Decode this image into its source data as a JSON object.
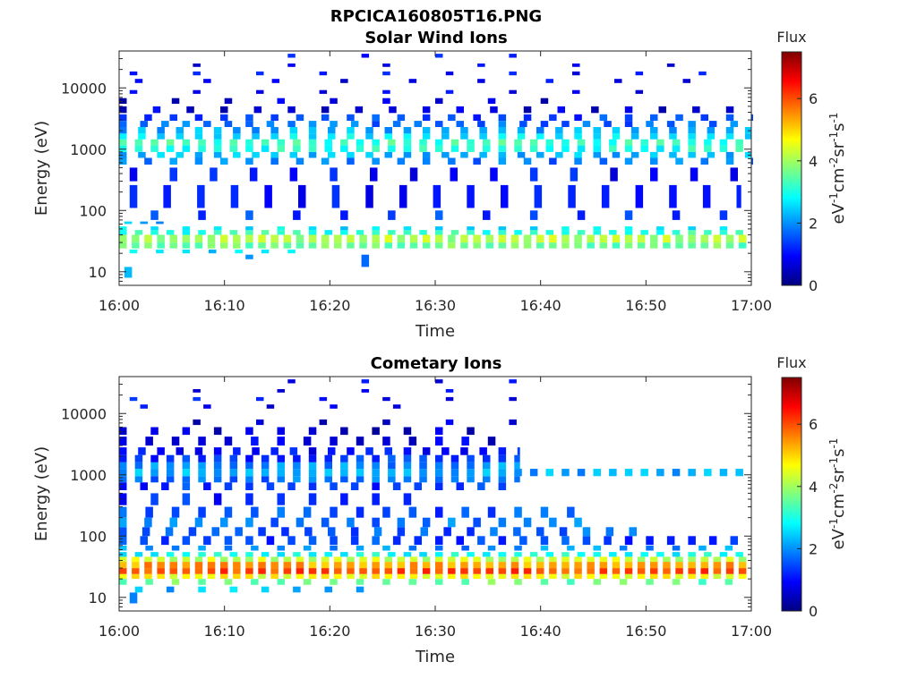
{
  "figure_title": "RPCICA160805T16.PNG",
  "colormap": [
    "#00007f",
    "#0000ff",
    "#007fff",
    "#00ffff",
    "#7fff7f",
    "#ffff00",
    "#ff7f00",
    "#ff0000",
    "#7f0000"
  ],
  "chart_data": [
    {
      "type": "heatmap",
      "title": "Solar Wind Ions",
      "xlabel": "Time",
      "ylabel": "Energy (eV)",
      "xlim": [
        "16:00",
        "17:00"
      ],
      "xticks": [
        "16:00",
        "16:10",
        "16:20",
        "16:30",
        "16:40",
        "16:50",
        "17:00"
      ],
      "yscale": "log",
      "ylim": [
        6,
        40000
      ],
      "yticks": [
        10,
        100,
        1000,
        10000
      ],
      "yticklabels": [
        "10",
        "100",
        "1000",
        "10000"
      ],
      "colorbar": {
        "title": "Flux",
        "label": "eV⁻¹cm⁻²sr⁻¹s⁻¹",
        "range": [
          0,
          7.5
        ],
        "ticks": [
          0,
          2,
          4,
          6
        ]
      },
      "bands": [
        {
          "e_lo": 8,
          "e_hi": 12,
          "x_from": 0.5,
          "x_to": 1.8,
          "x_step": 60,
          "level": 2.2
        },
        {
          "e_lo": 16,
          "e_hi": 19,
          "x_from": 12,
          "x_to": 13.5,
          "x_step": 60,
          "level": 2.2
        },
        {
          "e_lo": 12,
          "e_hi": 19,
          "x_from": 23,
          "x_to": 24.5,
          "x_step": 60,
          "level": 1.6
        },
        {
          "e_lo": 20,
          "e_hi": 23,
          "x_from": 1,
          "x_to": 17,
          "x_step": 2.5,
          "level": 2.5
        },
        {
          "e_lo": 24,
          "e_hi": 30,
          "x_from": 0,
          "x_to": 60,
          "x_step": 1.2,
          "level": 3.6
        },
        {
          "e_lo": 30,
          "e_hi": 40,
          "x_from": 0,
          "x_to": 60,
          "x_step": 1.2,
          "level": 4.1
        },
        {
          "e_lo": 40,
          "e_hi": 48,
          "x_from": 0,
          "x_to": 60,
          "x_step": 1.5,
          "level": 3.1
        },
        {
          "e_lo": 48,
          "e_hi": 55,
          "x_from": 0,
          "x_to": 60,
          "x_step": 3.0,
          "level": 2.7
        },
        {
          "e_lo": 60,
          "e_hi": 66,
          "x_from": 0.5,
          "x_to": 5,
          "x_step": 1.5,
          "level": 2.2
        },
        {
          "e_lo": 70,
          "e_hi": 100,
          "x_from": 3,
          "x_to": 58,
          "x_step": 4.5,
          "level": 1.3
        },
        {
          "e_lo": 110,
          "e_hi": 260,
          "x_from": 1,
          "x_to": 59,
          "x_step": 3.2,
          "level": 1.1
        },
        {
          "e_lo": 300,
          "e_hi": 500,
          "x_from": 1,
          "x_to": 59,
          "x_step": 3.8,
          "level": 1.0
        },
        {
          "e_lo": 560,
          "e_hi": 720,
          "x_from": 0,
          "x_to": 60,
          "x_step": 2.4,
          "level": 1.8
        },
        {
          "e_lo": 720,
          "e_hi": 900,
          "x_from": 0,
          "x_to": 60,
          "x_step": 1.8,
          "level": 2.3
        },
        {
          "e_lo": 900,
          "e_hi": 1150,
          "x_from": 0,
          "x_to": 60,
          "x_step": 1.5,
          "level": 3.0
        },
        {
          "e_lo": 1150,
          "e_hi": 1450,
          "x_from": 0,
          "x_to": 60,
          "x_step": 1.5,
          "level": 3.2
        },
        {
          "e_lo": 1450,
          "e_hi": 1800,
          "x_from": 0,
          "x_to": 60,
          "x_step": 1.8,
          "level": 2.7
        },
        {
          "e_lo": 1800,
          "e_hi": 2300,
          "x_from": 0,
          "x_to": 60,
          "x_step": 1.8,
          "level": 2.2
        },
        {
          "e_lo": 2300,
          "e_hi": 2900,
          "x_from": 0,
          "x_to": 60,
          "x_step": 2.0,
          "level": 1.7
        },
        {
          "e_lo": 2900,
          "e_hi": 3700,
          "x_from": 0,
          "x_to": 60,
          "x_step": 2.4,
          "level": 1.4
        },
        {
          "e_lo": 3900,
          "e_hi": 5000,
          "x_from": 0,
          "x_to": 60,
          "x_step": 3.2,
          "level": 0.7
        },
        {
          "e_lo": 5500,
          "e_hi": 6800,
          "x_from": 0,
          "x_to": 42,
          "x_step": 5.0,
          "level": 0.6
        },
        {
          "e_lo": 8000,
          "e_hi": 9200,
          "x_from": 1,
          "x_to": 52,
          "x_step": 6.0,
          "level": 0.8
        },
        {
          "e_lo": 12000,
          "e_hi": 14000,
          "x_from": 1.5,
          "x_to": 58,
          "x_step": 6.5,
          "level": 0.9
        },
        {
          "e_lo": 16000,
          "e_hi": 18500,
          "x_from": 1,
          "x_to": 58,
          "x_step": 6.0,
          "level": 1.0
        },
        {
          "e_lo": 22000,
          "e_hi": 25000,
          "x_from": 7,
          "x_to": 56,
          "x_step": 9.0,
          "level": 0.8
        },
        {
          "e_lo": 31000,
          "e_hi": 36000,
          "x_from": 16,
          "x_to": 38,
          "x_step": 7.0,
          "level": 1.0
        }
      ]
    },
    {
      "type": "heatmap",
      "title": "Cometary Ions",
      "xlabel": "Time",
      "ylabel": "Energy (eV)",
      "xlim": [
        "16:00",
        "17:00"
      ],
      "xticks": [
        "16:00",
        "16:10",
        "16:20",
        "16:30",
        "16:40",
        "16:50",
        "17:00"
      ],
      "yscale": "log",
      "ylim": [
        6,
        40000
      ],
      "yticks": [
        10,
        100,
        1000,
        10000
      ],
      "yticklabels": [
        "10",
        "100",
        "1000",
        "10000"
      ],
      "colorbar": {
        "title": "Flux",
        "label": "eV⁻¹cm⁻²sr⁻¹s⁻¹",
        "range": [
          0,
          7.5
        ],
        "ticks": [
          0,
          2,
          4,
          6
        ]
      },
      "bands": [
        {
          "e_lo": 8,
          "e_hi": 12,
          "x_from": 1,
          "x_to": 2.5,
          "x_step": 60,
          "level": 1.6
        },
        {
          "e_lo": 12,
          "e_hi": 15,
          "x_from": 1.5,
          "x_to": 24.5,
          "x_step": 3.0,
          "level": 2.3
        },
        {
          "e_lo": 16,
          "e_hi": 20,
          "x_from": 0,
          "x_to": 60,
          "x_step": 2.5,
          "level": 3.6
        },
        {
          "e_lo": 20,
          "e_hi": 24,
          "x_from": 0,
          "x_to": 60,
          "x_step": 1.2,
          "level": 4.6
        },
        {
          "e_lo": 24,
          "e_hi": 30,
          "x_from": 0,
          "x_to": 60,
          "x_step": 1.2,
          "level": 6.0
        },
        {
          "e_lo": 30,
          "e_hi": 38,
          "x_from": 0,
          "x_to": 60,
          "x_step": 1.2,
          "level": 5.4
        },
        {
          "e_lo": 38,
          "e_hi": 46,
          "x_from": 0,
          "x_to": 60,
          "x_step": 1.2,
          "level": 4.3
        },
        {
          "e_lo": 46,
          "e_hi": 55,
          "x_from": 0,
          "x_to": 60,
          "x_step": 1.5,
          "level": 2.9
        },
        {
          "e_lo": 58,
          "e_hi": 70,
          "x_from": 0,
          "x_to": 60,
          "x_step": 2.5,
          "level": 2.0
        },
        {
          "e_lo": 72,
          "e_hi": 100,
          "x_from": 0,
          "x_to": 60,
          "x_step": 2.0,
          "level": 1.4
        },
        {
          "e_lo": 100,
          "e_hi": 140,
          "x_from": 0,
          "x_to": 50,
          "x_step": 2.2,
          "level": 1.6
        },
        {
          "e_lo": 140,
          "e_hi": 200,
          "x_from": 0,
          "x_to": 45,
          "x_step": 2.4,
          "level": 1.8
        },
        {
          "e_lo": 200,
          "e_hi": 300,
          "x_from": 0,
          "x_to": 44,
          "x_step": 2.5,
          "level": 1.5
        },
        {
          "e_lo": 320,
          "e_hi": 500,
          "x_from": 0,
          "x_to": 30,
          "x_step": 3.0,
          "level": 1.2
        },
        {
          "e_lo": 560,
          "e_hi": 750,
          "x_from": 0,
          "x_to": 38,
          "x_step": 2.0,
          "level": 1.3
        },
        {
          "e_lo": 750,
          "e_hi": 950,
          "x_from": 0,
          "x_to": 38,
          "x_step": 1.5,
          "level": 1.8
        },
        {
          "e_lo": 950,
          "e_hi": 1250,
          "x_from": 0,
          "x_to": 60,
          "x_step": 1.5,
          "level": 2.2
        },
        {
          "e_lo": 1250,
          "e_hi": 1600,
          "x_from": 0,
          "x_to": 38,
          "x_step": 1.5,
          "level": 2.0
        },
        {
          "e_lo": 1600,
          "e_hi": 2100,
          "x_from": 0,
          "x_to": 38,
          "x_step": 1.5,
          "level": 1.3
        },
        {
          "e_lo": 2100,
          "e_hi": 2800,
          "x_from": 0,
          "x_to": 38,
          "x_step": 1.8,
          "level": 1.0
        },
        {
          "e_lo": 3000,
          "e_hi": 4200,
          "x_from": 0,
          "x_to": 36,
          "x_step": 2.5,
          "level": 0.7
        },
        {
          "e_lo": 4500,
          "e_hi": 6000,
          "x_from": 0,
          "x_to": 36,
          "x_step": 3.0,
          "level": 0.5
        },
        {
          "e_lo": 6500,
          "e_hi": 8000,
          "x_from": 7,
          "x_to": 43,
          "x_step": 6.0,
          "level": 0.6
        },
        {
          "e_lo": 12000,
          "e_hi": 14000,
          "x_from": 2,
          "x_to": 30,
          "x_step": 6.0,
          "level": 0.9
        },
        {
          "e_lo": 16000,
          "e_hi": 18500,
          "x_from": 1,
          "x_to": 38,
          "x_step": 6.0,
          "level": 1.0
        },
        {
          "e_lo": 22000,
          "e_hi": 25000,
          "x_from": 7,
          "x_to": 38,
          "x_step": 8.0,
          "level": 0.9
        },
        {
          "e_lo": 31000,
          "e_hi": 36000,
          "x_from": 16,
          "x_to": 38,
          "x_step": 7.0,
          "level": 1.0
        }
      ]
    }
  ]
}
